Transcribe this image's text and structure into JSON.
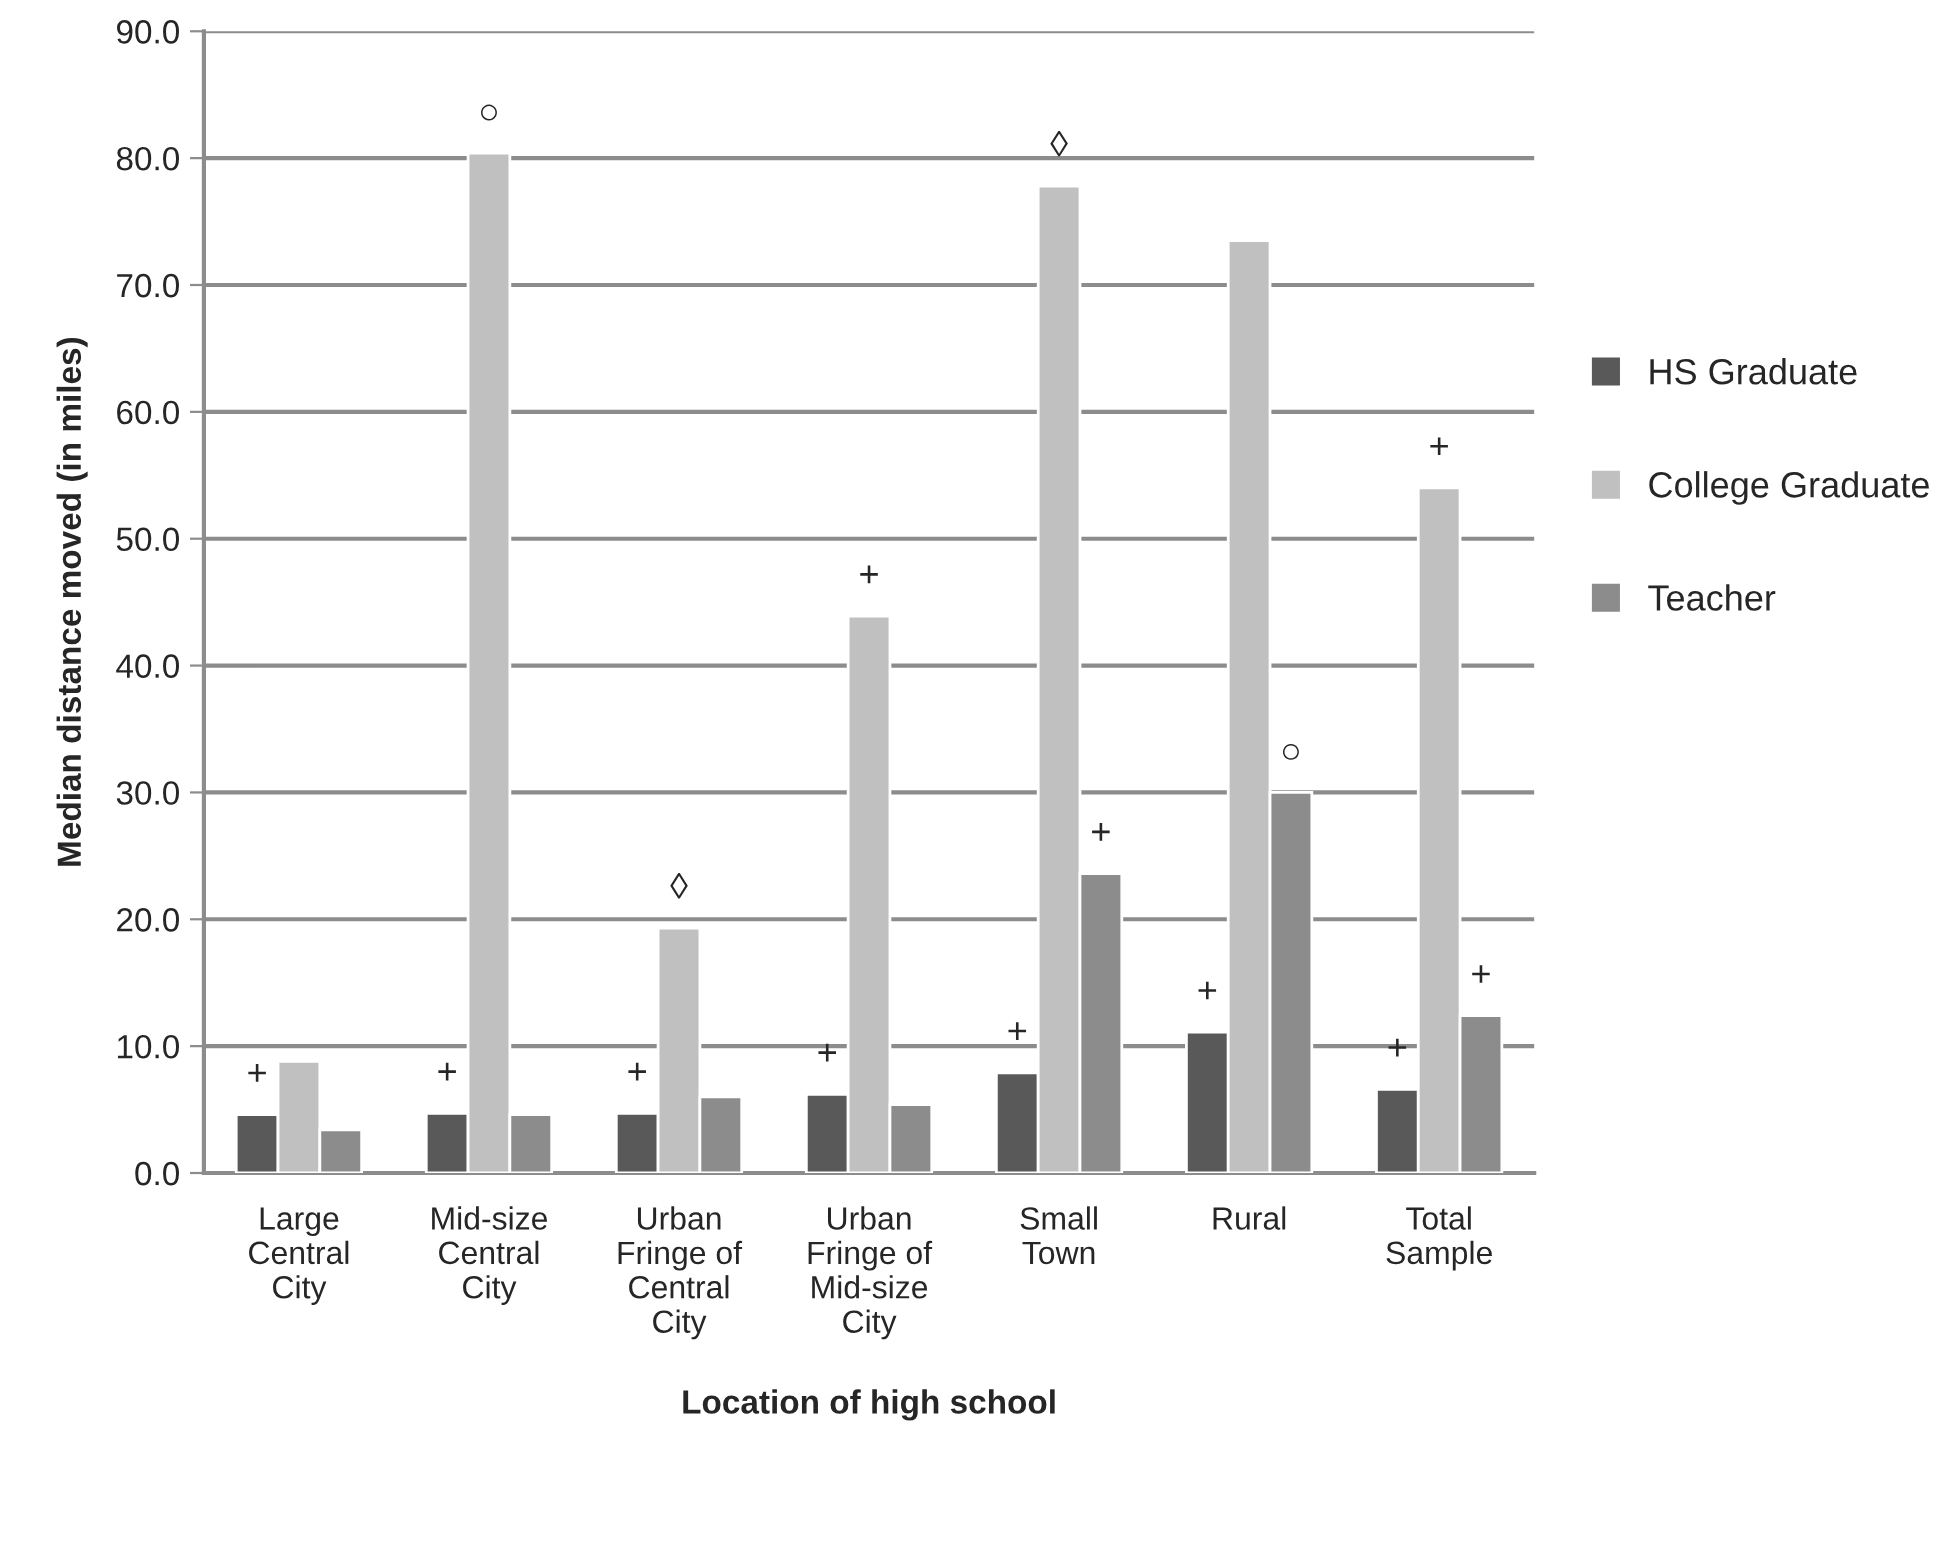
{
  "chart_data": {
    "type": "bar",
    "xlabel": "Location of high school",
    "ylabel": "Median distance moved (in miles)",
    "categories": [
      "Large\nCentral\nCity",
      "Mid-size\nCentral\nCity",
      "Urban\nFringe of\nCentral\nCity",
      "Urban\nFringe of\nMid-size\nCity",
      "Small\nTown",
      "Rural",
      "Total\nSample"
    ],
    "series": [
      {
        "name": "HS Graduate",
        "color": "#595959",
        "values": [
          4.6,
          4.7,
          4.7,
          6.2,
          7.9,
          11.1,
          6.6
        ],
        "value_labels": [
          "+",
          "+",
          "+",
          "+",
          "+",
          "+",
          "+"
        ]
      },
      {
        "name": "College Graduate",
        "color": "#c0c0c0",
        "values": [
          8.8,
          80.4,
          19.3,
          43.9,
          77.8,
          73.5,
          54.0
        ],
        "value_labels": [
          null,
          "○",
          "◊",
          "+",
          "◊",
          null,
          "+"
        ]
      },
      {
        "name": "Teacher",
        "color": "#8c8c8c",
        "values": [
          3.4,
          4.6,
          6.0,
          5.4,
          23.6,
          30.0,
          12.4
        ],
        "value_labels": [
          null,
          null,
          null,
          null,
          "+",
          "○",
          "+"
        ]
      }
    ],
    "ylim": [
      0,
      90
    ],
    "yticks": [
      {
        "value": 0,
        "label": "0.0"
      },
      {
        "value": 10,
        "label": "10.0"
      },
      {
        "value": 20,
        "label": "20.0"
      },
      {
        "value": 30,
        "label": "30.0"
      },
      {
        "value": 40,
        "label": "40.0"
      },
      {
        "value": 50,
        "label": "50.0"
      },
      {
        "value": 60,
        "label": "60.0"
      },
      {
        "value": 70,
        "label": "70.0"
      },
      {
        "value": 80,
        "label": "80.0"
      },
      {
        "value": 90,
        "label": "90.0"
      }
    ],
    "grid": "y",
    "legend": "right"
  }
}
